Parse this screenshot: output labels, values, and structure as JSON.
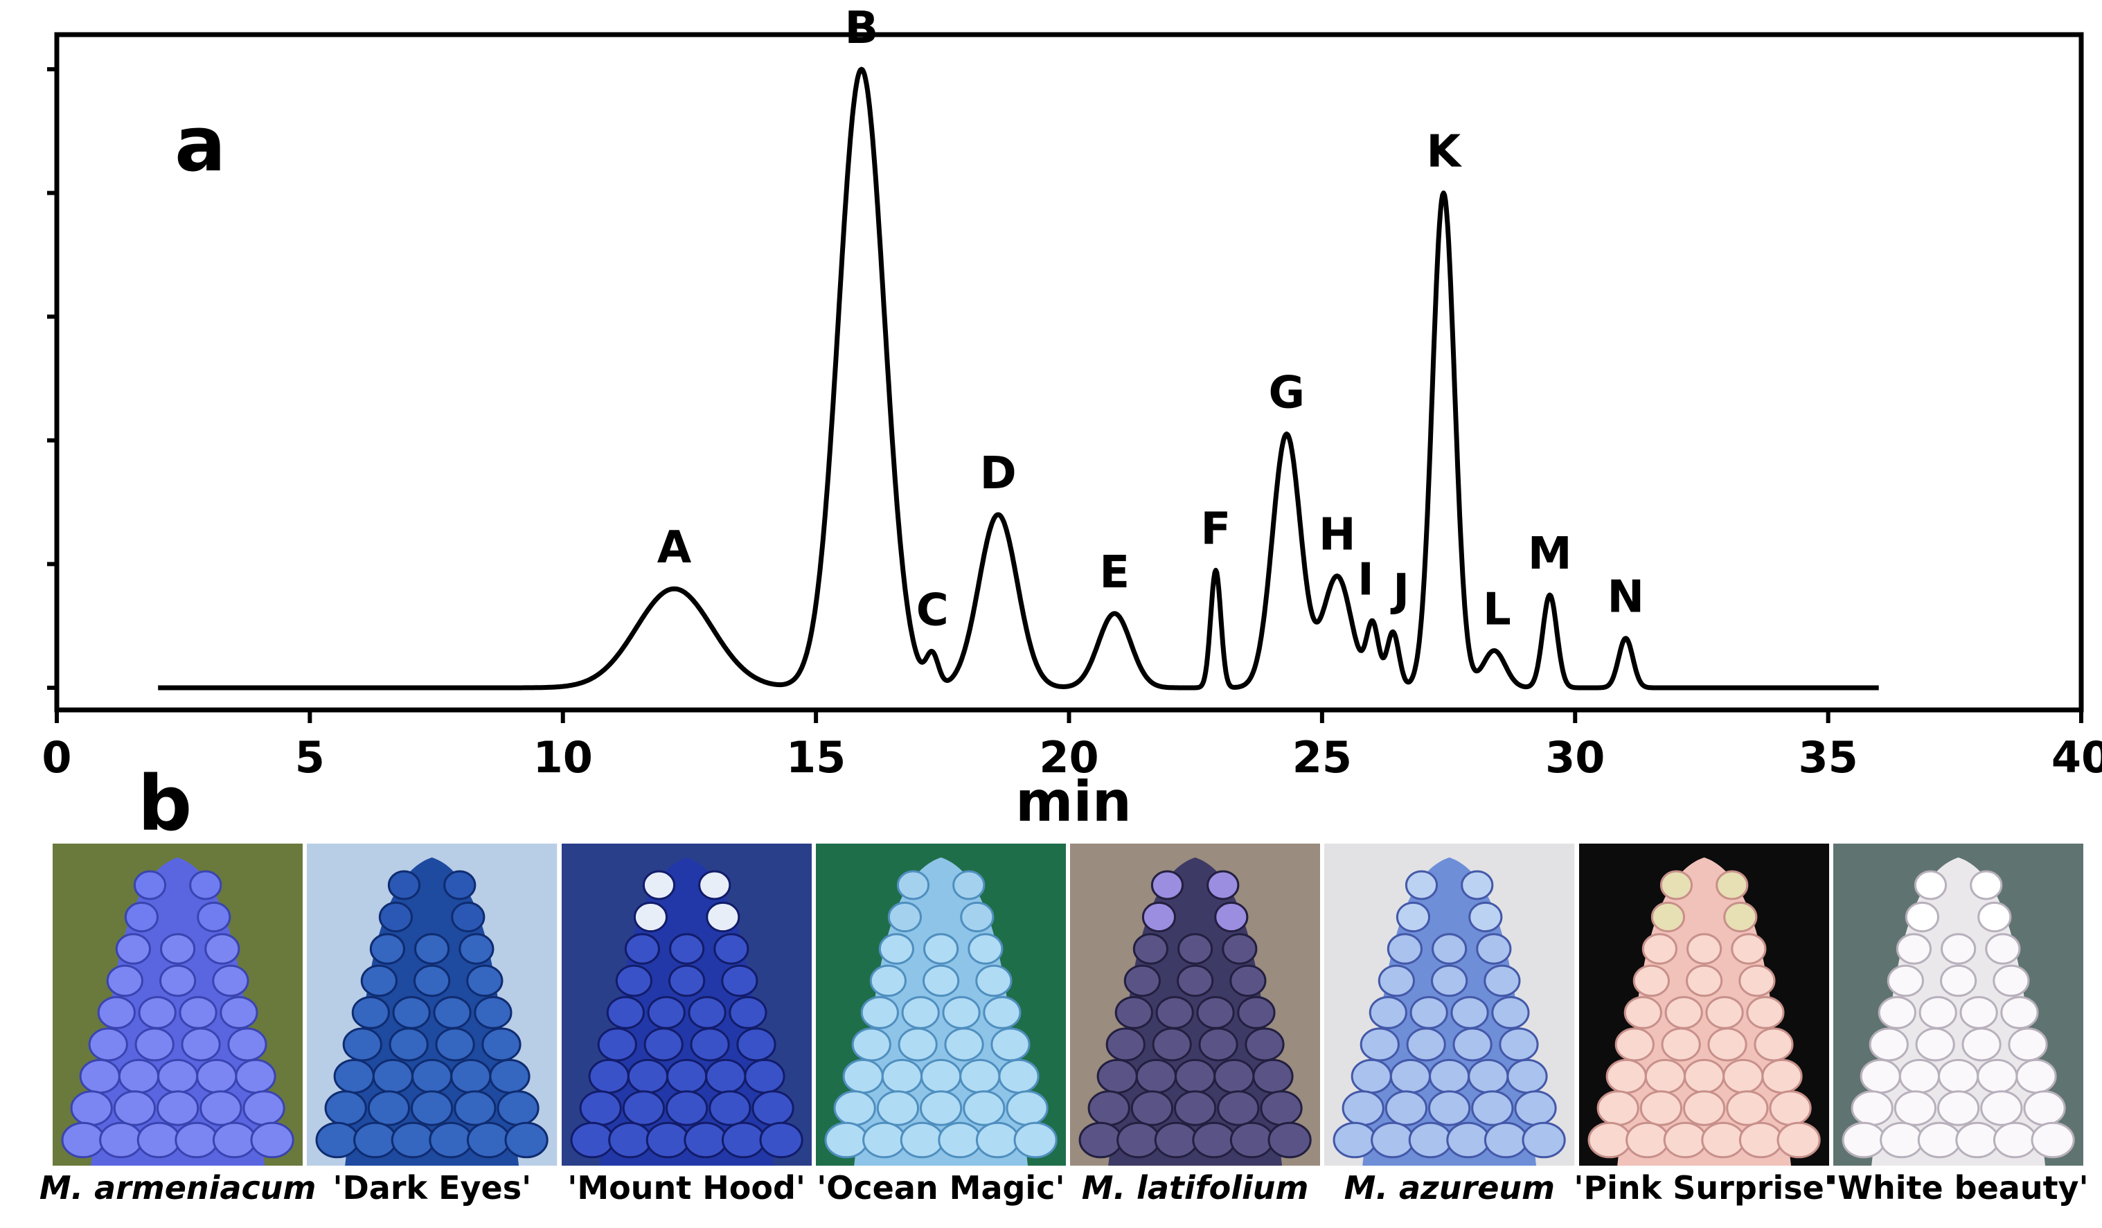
{
  "panel_labels": {
    "a": "a",
    "b": "b"
  },
  "chart_data": {
    "type": "line",
    "title": "",
    "xlabel": "min",
    "ylabel": "",
    "xlim": [
      0,
      40
    ],
    "ylim": [
      0,
      100
    ],
    "x_ticks": [
      "0",
      "5",
      "10",
      "15",
      "20",
      "25",
      "30",
      "35",
      "40"
    ],
    "y_ticks": [
      0,
      20,
      40,
      60,
      80,
      100
    ],
    "baseline_start_min": 2,
    "baseline_end_min": 36,
    "peaks": [
      {
        "label": "A",
        "rt": 12.2,
        "height": 16,
        "width": 0.75
      },
      {
        "label": "B",
        "rt": 15.9,
        "height": 100,
        "width": 0.45
      },
      {
        "label": "C",
        "rt": 17.3,
        "height": 5,
        "width": 0.12
      },
      {
        "label": "D",
        "rt": 18.6,
        "height": 28,
        "width": 0.38
      },
      {
        "label": "E",
        "rt": 20.9,
        "height": 12,
        "width": 0.32
      },
      {
        "label": "F",
        "rt": 22.9,
        "height": 19,
        "width": 0.1
      },
      {
        "label": "G",
        "rt": 24.3,
        "height": 41,
        "width": 0.28
      },
      {
        "label": "H",
        "rt": 25.3,
        "height": 18,
        "width": 0.28
      },
      {
        "label": "I",
        "rt": 26.0,
        "height": 10,
        "width": 0.12
      },
      {
        "label": "J",
        "rt": 26.4,
        "height": 9,
        "width": 0.12
      },
      {
        "label": "K",
        "rt": 27.4,
        "height": 80,
        "width": 0.22
      },
      {
        "label": "L",
        "rt": 28.4,
        "height": 6,
        "width": 0.22
      },
      {
        "label": "M",
        "rt": 29.5,
        "height": 15,
        "width": 0.14
      },
      {
        "label": "N",
        "rt": 31.0,
        "height": 8,
        "width": 0.14
      }
    ]
  },
  "photos": [
    {
      "caption": "M. armeniacum",
      "italic": true,
      "bg": "#6a7a3c",
      "body": "#5a66e0",
      "floret": "#7b86f2",
      "edge": "#3a44b0",
      "top": "#6f7df0"
    },
    {
      "caption": "'Dark Eyes'",
      "italic": false,
      "bg": "#b8cde6",
      "body": "#1e4aa0",
      "floret": "#3566c0",
      "edge": "#0f2c70",
      "top": "#2a58b4"
    },
    {
      "caption": "'Mount Hood'",
      "italic": false,
      "bg": "#2a3f8a",
      "body": "#2238a8",
      "floret": "#3a52c8",
      "edge": "#121c6a",
      "top": "#e8eef8"
    },
    {
      "caption": "'Ocean Magic'",
      "italic": false,
      "bg": "#1f6e4a",
      "body": "#8ec4e8",
      "floret": "#b0dbf4",
      "edge": "#4f8fbf",
      "top": "#a4d2ee"
    },
    {
      "caption": "M. latifolium",
      "italic": true,
      "bg": "#9a8c7e",
      "body": "#3e3a66",
      "floret": "#5a5486",
      "edge": "#231f40",
      "top": "#9b8de0"
    },
    {
      "caption": "M. azureum",
      "italic": true,
      "bg": "#e2e2e4",
      "body": "#6e8ed8",
      "floret": "#a9c2ee",
      "edge": "#4458a8",
      "top": "#bcd2f2"
    },
    {
      "caption": "'Pink Surprise'",
      "italic": false,
      "bg": "#0c0c0c",
      "body": "#f1c2ba",
      "floret": "#f8d8cf",
      "edge": "#c8908a",
      "top": "#e6e0b4"
    },
    {
      "caption": "'White beauty'",
      "italic": false,
      "bg": "#5f7470",
      "body": "#ebe8ec",
      "floret": "#faf8fa",
      "edge": "#b8b0bc",
      "top": "#ffffff"
    }
  ]
}
